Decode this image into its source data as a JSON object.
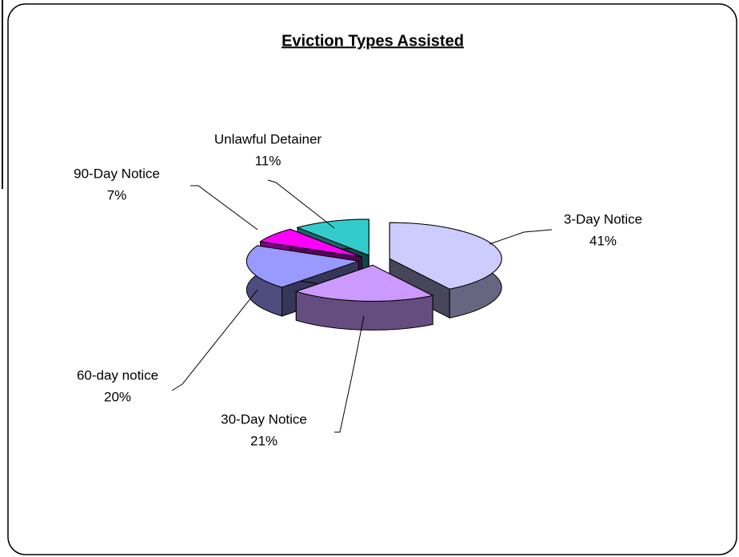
{
  "chart_data": {
    "type": "pie3d",
    "title": "Eviction Types Assisted",
    "categories": [
      "3-Day Notice",
      "30-Day Notice",
      "60-day notice",
      "90-Day Notice",
      "Unlawful Detainer"
    ],
    "values": [
      41,
      21,
      20,
      7,
      11
    ],
    "value_labels": [
      "41%",
      "21%",
      "20%",
      "7%",
      "11%"
    ],
    "colors": [
      "#ccccff",
      "#cc99ff",
      "#9999ff",
      "#ff00ff",
      "#33cccc"
    ]
  }
}
